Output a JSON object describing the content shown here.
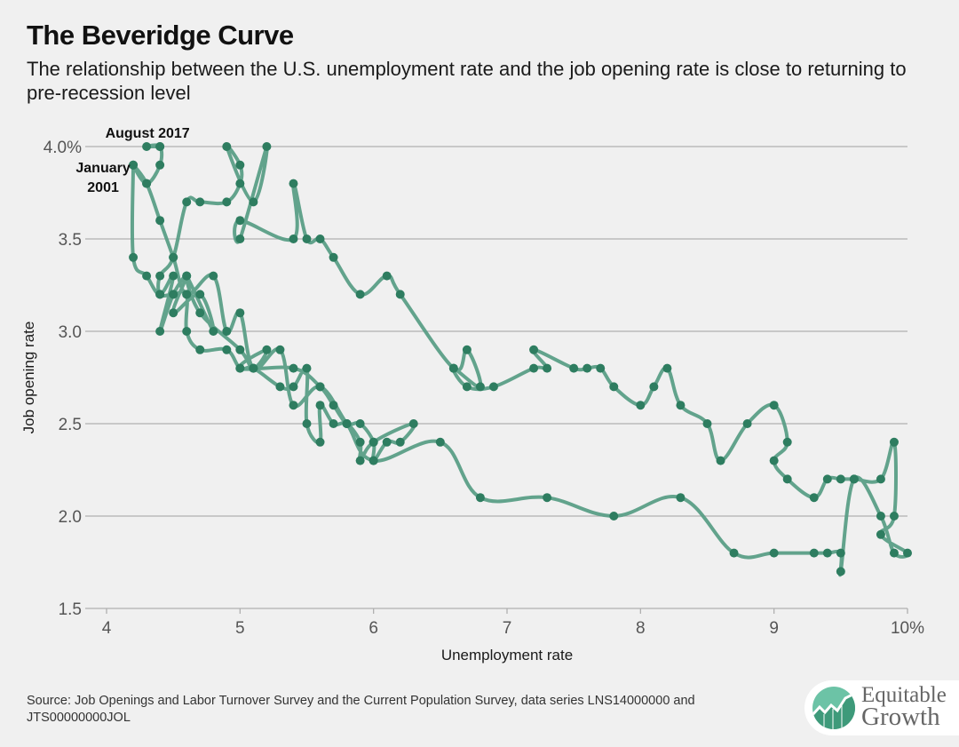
{
  "header": {
    "title": "The Beveridge Curve",
    "subtitle": "The relationship between the U.S. unemployment rate and the job opening rate is close to returning to pre-recession level"
  },
  "footer": {
    "source": "Source: Job Openings and Labor Turnover Survey and the Current Population Survey, data series LNS14000000 and JTS00000000JOL",
    "logo": {
      "line1": "Equitable",
      "line2": "Growth",
      "icon": "rising-chart-logo-icon"
    }
  },
  "colors": {
    "series": "#2e7d60",
    "line": "#5a9e86",
    "grid": "#b0b0b0",
    "background": "#f0f0f0"
  },
  "chart_data": {
    "type": "line",
    "title": "The Beveridge Curve",
    "subtitle": "The relationship between the U.S. unemployment rate and the job opening rate is close to returning to pre-recession level",
    "xlabel": "Unemployment rate",
    "ylabel": "Job opening rate",
    "xlim": [
      4,
      10
    ],
    "ylim": [
      1.5,
      4.0
    ],
    "xticks": [
      "4",
      "5",
      "6",
      "7",
      "8",
      "9",
      "10%"
    ],
    "xtick_values": [
      4,
      5,
      6,
      7,
      8,
      9,
      10
    ],
    "yticks": [
      "1.5",
      "2.0",
      "2.5",
      "3.0",
      "3.5",
      "4.0%"
    ],
    "ytick_values": [
      1.5,
      2.0,
      2.5,
      3.0,
      3.5,
      4.0
    ],
    "grid": "horizontal",
    "annotations": [
      {
        "text": [
          "January",
          "2001"
        ],
        "x": 4.2,
        "y": 3.9,
        "anchor": "left-of-point"
      },
      {
        "text": [
          "August 2017"
        ],
        "x": 4.4,
        "y": 4.0,
        "anchor": "above-point"
      }
    ],
    "series": [
      {
        "name": "Beveridge curve (Jan 2001 - Aug 2017)",
        "x": [
          4.2,
          4.2,
          4.3,
          4.4,
          4.5,
          4.4,
          4.5,
          4.6,
          4.5,
          4.7,
          4.8,
          4.6,
          4.7,
          5.0,
          5.1,
          5.2,
          5.0,
          5.4,
          5.6,
          5.7,
          5.8,
          5.9,
          6.0,
          6.0,
          6.1,
          6.2,
          6.3,
          6.0,
          5.9,
          5.9,
          5.8,
          5.7,
          5.6,
          5.6,
          5.5,
          5.5,
          5.4,
          5.3,
          5.1,
          5.0,
          4.9,
          4.7,
          4.6,
          4.6,
          4.5,
          4.4,
          4.4,
          4.5,
          4.6,
          4.7,
          4.9,
          5.0,
          5.0,
          4.9,
          5.1,
          5.2,
          5.0,
          5.0,
          5.4,
          5.4,
          5.5,
          5.6,
          5.7,
          5.9,
          6.1,
          6.2,
          6.6,
          6.7,
          6.8,
          6.6,
          6.7,
          6.9,
          7.2,
          7.3,
          7.2,
          7.5,
          7.6,
          7.7,
          7.8,
          8.0,
          8.1,
          8.2,
          8.3,
          8.5,
          8.6,
          8.8,
          9.0,
          9.1,
          9.0,
          9.1,
          9.3,
          9.4,
          9.5,
          9.6,
          9.8,
          9.9,
          9.9,
          9.8,
          10.0,
          9.9,
          9.8,
          9.6,
          9.5,
          9.5,
          9.4,
          9.3,
          9.0,
          8.7,
          8.3,
          7.8,
          7.3,
          6.8,
          6.5,
          6.0,
          5.8,
          5.6,
          5.4,
          5.3,
          5.1,
          5.0,
          4.9,
          4.8,
          4.6,
          4.5,
          4.4,
          4.3,
          4.2,
          4.3,
          4.4,
          4.4,
          4.3,
          4.4
        ],
        "y": [
          3.9,
          3.4,
          3.3,
          3.2,
          3.3,
          3.0,
          3.2,
          3.3,
          3.1,
          3.2,
          3.0,
          3.3,
          3.1,
          2.9,
          2.8,
          2.9,
          2.8,
          2.8,
          2.7,
          2.6,
          2.5,
          2.5,
          2.4,
          2.3,
          2.4,
          2.4,
          2.5,
          2.4,
          2.3,
          2.4,
          2.5,
          2.5,
          2.6,
          2.4,
          2.5,
          2.8,
          2.7,
          2.7,
          2.8,
          2.8,
          2.9,
          2.9,
          3.0,
          3.2,
          3.2,
          3.2,
          3.3,
          3.4,
          3.7,
          3.7,
          3.7,
          3.8,
          3.9,
          4.0,
          3.7,
          4.0,
          3.5,
          3.6,
          3.5,
          3.8,
          3.5,
          3.5,
          3.4,
          3.2,
          3.3,
          3.2,
          2.8,
          2.9,
          2.7,
          2.8,
          2.7,
          2.7,
          2.8,
          2.8,
          2.9,
          2.8,
          2.8,
          2.8,
          2.7,
          2.6,
          2.7,
          2.8,
          2.6,
          2.5,
          2.3,
          2.5,
          2.6,
          2.4,
          2.3,
          2.2,
          2.1,
          2.2,
          2.2,
          2.2,
          2.2,
          2.4,
          2.0,
          1.9,
          1.8,
          1.8,
          2.0,
          2.2,
          1.7,
          1.8,
          1.8,
          1.8,
          1.8,
          1.8,
          2.1,
          2.0,
          2.1,
          2.1,
          2.4,
          2.3,
          2.5,
          2.7,
          2.6,
          2.9,
          2.8,
          3.1,
          3.0,
          3.3,
          3.2,
          3.4,
          3.6,
          3.8,
          3.9,
          3.8,
          3.9,
          4.0,
          4.0,
          4.0
        ]
      }
    ]
  }
}
